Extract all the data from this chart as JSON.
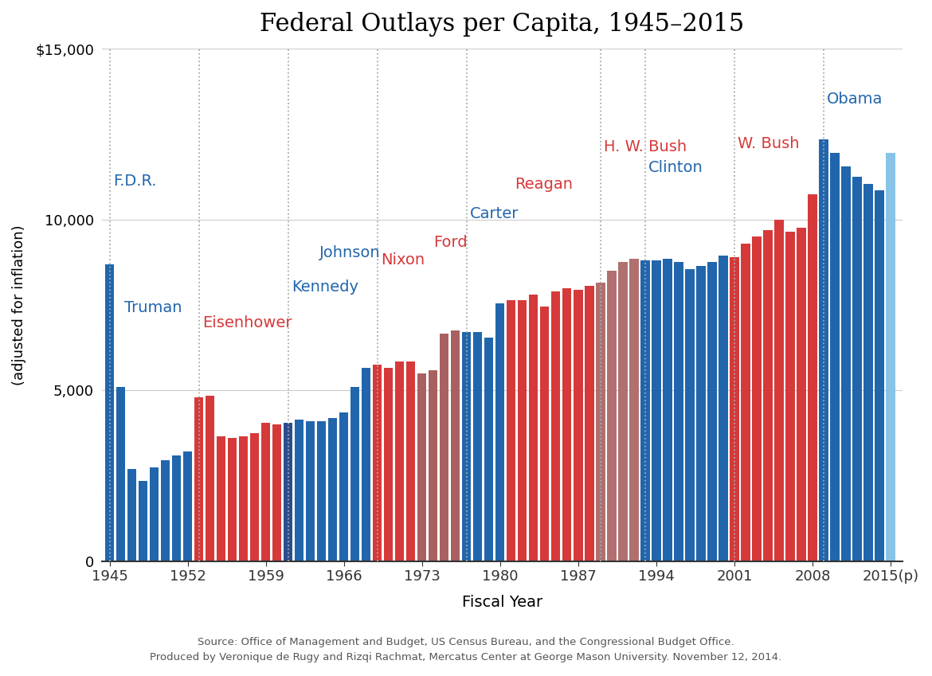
{
  "title": "Federal Outlays per Capita, 1945–2015",
  "xlabel": "Fiscal Year",
  "ylabel": "(adjusted for inflation)",
  "source_text": "Source: Office of Management and Budget, US Census Bureau, and the Congressional Budget Office.\nProduced by Veronique de Rugy and Rizqi Rachmat, Mercatus Center at George Mason University. November 12, 2014.",
  "years": [
    1945,
    1946,
    1947,
    1948,
    1949,
    1950,
    1951,
    1952,
    1953,
    1954,
    1955,
    1956,
    1957,
    1958,
    1959,
    1960,
    1961,
    1962,
    1963,
    1964,
    1965,
    1966,
    1967,
    1968,
    1969,
    1970,
    1971,
    1972,
    1973,
    1974,
    1975,
    1976,
    1977,
    1978,
    1979,
    1980,
    1981,
    1982,
    1983,
    1984,
    1985,
    1986,
    1987,
    1988,
    1989,
    1990,
    1991,
    1992,
    1993,
    1994,
    1995,
    1996,
    1997,
    1998,
    1999,
    2000,
    2001,
    2002,
    2003,
    2004,
    2005,
    2006,
    2007,
    2008,
    2009,
    2010,
    2011,
    2012,
    2013,
    2014,
    2015
  ],
  "values": [
    8700,
    5100,
    2700,
    2350,
    2750,
    2950,
    3100,
    3200,
    4800,
    4850,
    3650,
    3600,
    3650,
    3750,
    4050,
    4000,
    4050,
    4150,
    4100,
    4100,
    4200,
    4350,
    5100,
    5650,
    5750,
    5650,
    5850,
    5850,
    5500,
    5600,
    6650,
    6750,
    6700,
    6700,
    6550,
    7550,
    7650,
    7650,
    7800,
    7450,
    7900,
    8000,
    7950,
    8050,
    8150,
    8500,
    8750,
    8850,
    8800,
    8800,
    8850,
    8750,
    8550,
    8650,
    8750,
    8950,
    8900,
    9300,
    9500,
    9700,
    10000,
    9650,
    9750,
    10750,
    12350,
    11950,
    11550,
    11250,
    11050,
    10850,
    11950
  ],
  "colors": [
    "#2166ac",
    "#2166ac",
    "#2166ac",
    "#2166ac",
    "#2166ac",
    "#2166ac",
    "#2166ac",
    "#2166ac",
    "#d6393a",
    "#d6393a",
    "#d6393a",
    "#d6393a",
    "#d6393a",
    "#d6393a",
    "#d6393a",
    "#d6393a",
    "#2a4d8f",
    "#2166ac",
    "#2166ac",
    "#2166ac",
    "#2166ac",
    "#2166ac",
    "#2166ac",
    "#2166ac",
    "#d6393a",
    "#d6393a",
    "#d6393a",
    "#d6393a",
    "#a86060",
    "#a86060",
    "#a86060",
    "#a86060",
    "#2166ac",
    "#2166ac",
    "#2166ac",
    "#2166ac",
    "#d6393a",
    "#d6393a",
    "#d6393a",
    "#d6393a",
    "#d6393a",
    "#d6393a",
    "#d6393a",
    "#d6393a",
    "#b07070",
    "#b07070",
    "#b07070",
    "#b07070",
    "#2166ac",
    "#2166ac",
    "#2166ac",
    "#2166ac",
    "#2166ac",
    "#2166ac",
    "#2166ac",
    "#2166ac",
    "#d6393a",
    "#d6393a",
    "#d6393a",
    "#d6393a",
    "#d6393a",
    "#d6393a",
    "#d6393a",
    "#d6393a",
    "#2166ac",
    "#2166ac",
    "#2166ac",
    "#2166ac",
    "#2166ac",
    "#2166ac",
    "#88c4e8"
  ],
  "dashed_lines": [
    1945,
    1953,
    1961,
    1969,
    1977,
    1989,
    1993,
    2001,
    2009
  ],
  "label_data": {
    "F.D.R.": [
      1945.3,
      10900,
      "#2166ac"
    ],
    "Truman": [
      1946.3,
      7200,
      "#2166ac"
    ],
    "Eisenhower": [
      1953.3,
      6750,
      "#d6393a"
    ],
    "Kennedy": [
      1961.3,
      7800,
      "#2166ac"
    ],
    "Johnson": [
      1963.8,
      8800,
      "#2166ac"
    ],
    "Nixon": [
      1969.3,
      8600,
      "#d6393a"
    ],
    "Ford": [
      1974.0,
      9100,
      "#d6393a"
    ],
    "Carter": [
      1977.3,
      9950,
      "#2166ac"
    ],
    "Reagan": [
      1981.3,
      10800,
      "#d6393a"
    ],
    "H. W. Bush": [
      1989.3,
      11900,
      "#d6393a"
    ],
    "Clinton": [
      1993.3,
      11300,
      "#2166ac"
    ],
    "W. Bush": [
      2001.3,
      12000,
      "#d6393a"
    ],
    "Obama": [
      2009.3,
      13300,
      "#2166ac"
    ]
  },
  "ylim": [
    0,
    15000
  ],
  "yticks": [
    0,
    5000,
    10000,
    15000
  ],
  "ytick_labels": [
    "0",
    "5,000",
    "10,000",
    "$15,000"
  ],
  "xtick_years": [
    1945,
    1952,
    1959,
    1966,
    1973,
    1980,
    1987,
    1994,
    2001,
    2008,
    2015
  ],
  "xtick_labels": [
    "1945",
    "1952",
    "1959",
    "1966",
    "1973",
    "1980",
    "1987",
    "1994",
    "2001",
    "2008",
    "2015(p)"
  ]
}
